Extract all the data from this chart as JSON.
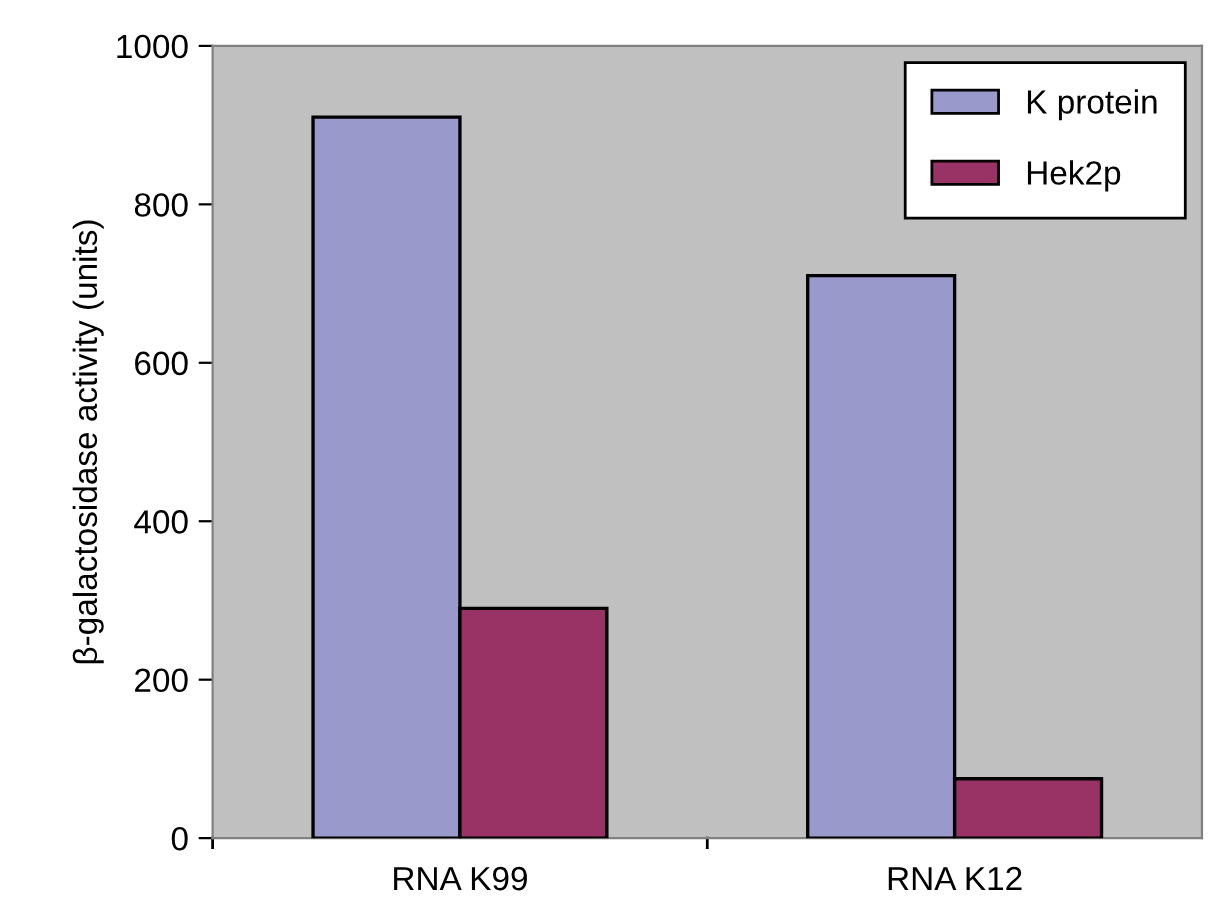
{
  "chart_data": {
    "type": "bar",
    "ylabel": "β-galactosidase activity (units)",
    "categories": [
      "RNA K99",
      "RNA K12"
    ],
    "series": [
      {
        "name": "K protein",
        "color": "#9999cc",
        "values": [
          910,
          710
        ]
      },
      {
        "name": "Hek2p",
        "color": "#993366",
        "values": [
          290,
          75
        ]
      }
    ],
    "ylim": [
      0,
      1000
    ],
    "yticks": [
      0,
      200,
      400,
      600,
      800,
      1000
    ],
    "grid": false,
    "legend": "top right"
  }
}
